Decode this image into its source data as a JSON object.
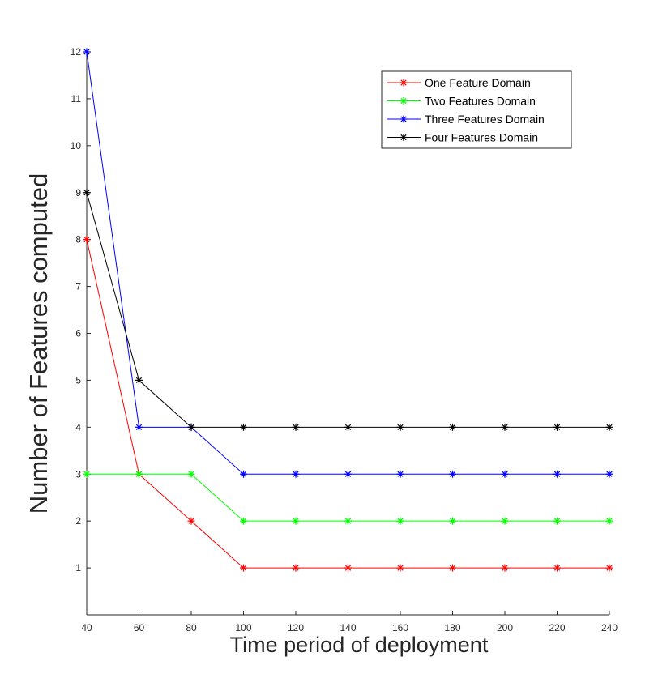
{
  "chart_data": {
    "type": "line",
    "title": "",
    "xlabel": "Time period of deployment",
    "ylabel": "Number of Features computed",
    "xlim": [
      40,
      240
    ],
    "ylim": [
      0,
      12
    ],
    "xticks": [
      40,
      60,
      80,
      100,
      120,
      140,
      160,
      180,
      200,
      220,
      240
    ],
    "yticks": [
      1,
      2,
      3,
      4,
      5,
      6,
      7,
      8,
      9,
      10,
      11,
      12
    ],
    "x": [
      40,
      60,
      80,
      100,
      120,
      140,
      160,
      180,
      200,
      220,
      240
    ],
    "marker": "asterisk",
    "grid": false,
    "legend_position": "top-right",
    "series": [
      {
        "name": "One Feature Domain",
        "color": "#ff0000",
        "values": [
          8,
          3,
          2,
          1,
          1,
          1,
          1,
          1,
          1,
          1,
          1
        ]
      },
      {
        "name": "Two Features Domain",
        "color": "#00ff00",
        "values": [
          3,
          3,
          3,
          2,
          2,
          2,
          2,
          2,
          2,
          2,
          2
        ]
      },
      {
        "name": "Three Features Domain",
        "color": "#0000ff",
        "values": [
          12,
          4,
          4,
          3,
          3,
          3,
          3,
          3,
          3,
          3,
          3
        ]
      },
      {
        "name": "Four Features Domain",
        "color": "#000000",
        "values": [
          9,
          5,
          4,
          4,
          4,
          4,
          4,
          4,
          4,
          4,
          4
        ]
      }
    ]
  }
}
